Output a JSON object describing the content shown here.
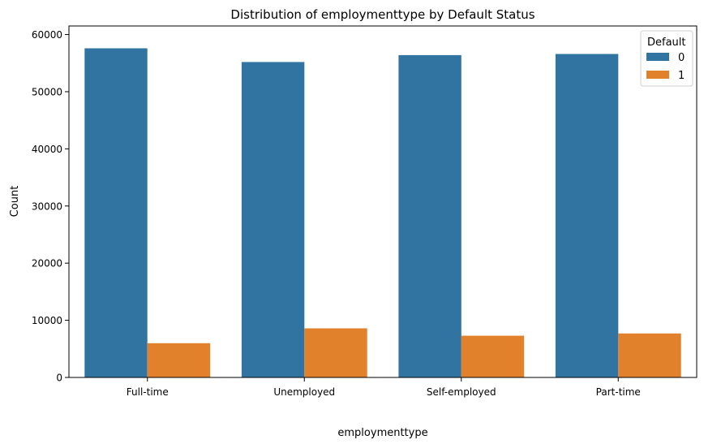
{
  "chart_data": {
    "type": "bar",
    "title": "Distribution of employmenttype by Default Status",
    "xlabel": "employmenttype",
    "ylabel": "Count",
    "categories": [
      "Full-time",
      "Unemployed",
      "Self-employed",
      "Part-time"
    ],
    "series": [
      {
        "name": "0",
        "values": [
          57600,
          55200,
          56400,
          56600
        ],
        "color": "#3274a1"
      },
      {
        "name": "1",
        "values": [
          6000,
          8600,
          7300,
          7700
        ],
        "color": "#e1812c"
      }
    ],
    "ylim": [
      0,
      61500
    ],
    "yticks": [
      0,
      10000,
      20000,
      30000,
      40000,
      50000,
      60000
    ],
    "ytick_labels": [
      "0",
      "10000",
      "20000",
      "30000",
      "40000",
      "50000",
      "60000"
    ],
    "legend": {
      "title": "Default",
      "placement": "top-right"
    },
    "grid": false
  }
}
